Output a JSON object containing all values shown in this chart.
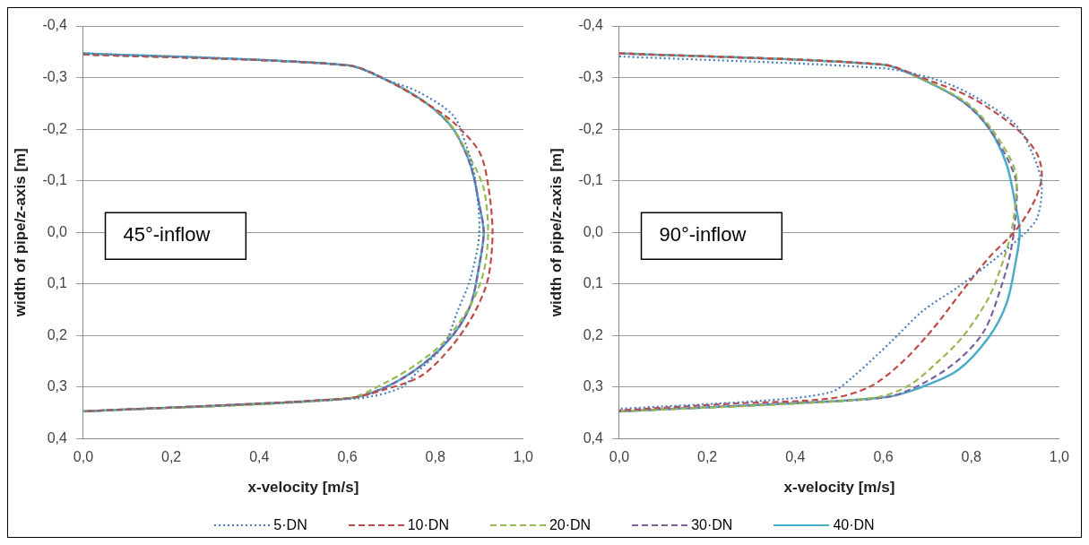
{
  "chart_data": [
    {
      "type": "line",
      "xlabel": "x-velocity [m/s]",
      "ylabel": "width of pipe/z-axis [m]",
      "annotations": [
        "45°-inflow"
      ],
      "xlim": [
        0,
        1
      ],
      "xticks": [
        {
          "value": 0,
          "label": "0,0"
        },
        {
          "value": 0.2,
          "label": "0,2"
        },
        {
          "value": 0.4,
          "label": "0,4"
        },
        {
          "value": 0.6,
          "label": "0,6"
        },
        {
          "value": 0.8,
          "label": "0,8"
        },
        {
          "value": 1,
          "label": "1,0"
        }
      ],
      "ylim": [
        0.4,
        -0.4
      ],
      "yticks": [
        {
          "value": -0.4,
          "label": "-0,4"
        },
        {
          "value": -0.3,
          "label": "-0,3"
        },
        {
          "value": -0.2,
          "label": "-0,2"
        },
        {
          "value": -0.1,
          "label": "-0,1"
        },
        {
          "value": 0,
          "label": "0,0"
        },
        {
          "value": 0.1,
          "label": "0,1"
        },
        {
          "value": 0.2,
          "label": "0,2"
        },
        {
          "value": 0.3,
          "label": "0,3"
        },
        {
          "value": 0.4,
          "label": "0,4"
        }
      ],
      "grid": "y",
      "legend": "bottom",
      "marker": "none",
      "series": [
        {
          "name": "5·DN",
          "color": "#4a7ebb",
          "line_style": "dotted",
          "x": [
            0,
            0.6,
            0.69,
            0.76,
            0.84,
            0.87,
            0.89,
            0.9,
            0.88,
            0.85,
            0.82,
            0.76,
            0.72,
            0.62,
            0
          ],
          "values": [
            -0.347,
            -0.324,
            -0.295,
            -0.273,
            -0.227,
            -0.169,
            -0.105,
            0,
            0.089,
            0.154,
            0.218,
            0.27,
            0.302,
            0.322,
            0.347
          ]
        },
        {
          "name": "10·DN",
          "color": "#be4b48",
          "line_style": "dashed",
          "x": [
            0,
            0.6,
            0.69,
            0.78,
            0.84,
            0.9,
            0.92,
            0.93,
            0.92,
            0.89,
            0.84,
            0.77,
            0.68,
            0.6,
            0
          ],
          "values": [
            -0.345,
            -0.324,
            -0.295,
            -0.25,
            -0.214,
            -0.156,
            -0.092,
            0,
            0.089,
            0.154,
            0.218,
            0.277,
            0.306,
            0.322,
            0.347
          ]
        },
        {
          "name": "20·DN",
          "color": "#98b954",
          "line_style": "dashed",
          "x": [
            0,
            0.6,
            0.69,
            0.78,
            0.83,
            0.88,
            0.91,
            0.92,
            0.91,
            0.88,
            0.82,
            0.76,
            0.69,
            0.6,
            0
          ],
          "values": [
            -0.345,
            -0.324,
            -0.295,
            -0.25,
            -0.214,
            -0.143,
            -0.085,
            0,
            0.076,
            0.141,
            0.212,
            0.254,
            0.29,
            0.322,
            0.347
          ]
        },
        {
          "name": "30·DN",
          "color": "#7d60a0",
          "line_style": "dashed",
          "x": [
            0,
            0.6,
            0.69,
            0.78,
            0.84,
            0.88,
            0.9,
            0.91,
            0.9,
            0.88,
            0.84,
            0.77,
            0.69,
            0.6,
            0
          ],
          "values": [
            -0.345,
            -0.324,
            -0.295,
            -0.25,
            -0.201,
            -0.13,
            -0.053,
            0,
            0.063,
            0.141,
            0.199,
            0.257,
            0.299,
            0.322,
            0.347
          ]
        },
        {
          "name": "40·DN",
          "color": "#4bacc6",
          "line_style": "solid",
          "x": [
            0,
            0.6,
            0.69,
            0.78,
            0.84,
            0.88,
            0.9,
            0.91,
            0.9,
            0.88,
            0.84,
            0.77,
            0.69,
            0.6,
            0
          ],
          "values": [
            -0.347,
            -0.324,
            -0.295,
            -0.25,
            -0.201,
            -0.13,
            -0.053,
            0,
            0.063,
            0.141,
            0.199,
            0.257,
            0.299,
            0.322,
            0.347
          ]
        }
      ]
    },
    {
      "type": "line",
      "xlabel": "x-velocity [m/s]",
      "ylabel": "width of pipe/z-axis [m]",
      "annotations": [
        "90°-inflow"
      ],
      "xlim": [
        0,
        1
      ],
      "xticks": [
        {
          "value": 0,
          "label": "0,0"
        },
        {
          "value": 0.2,
          "label": "0,2"
        },
        {
          "value": 0.4,
          "label": "0,4"
        },
        {
          "value": 0.6,
          "label": "0,6"
        },
        {
          "value": 0.8,
          "label": "0,8"
        },
        {
          "value": 1,
          "label": "1,0"
        }
      ],
      "ylim": [
        0.4,
        -0.4
      ],
      "yticks": [
        {
          "value": -0.4,
          "label": "-0,4"
        },
        {
          "value": -0.3,
          "label": "-0,3"
        },
        {
          "value": -0.2,
          "label": "-0,2"
        },
        {
          "value": -0.1,
          "label": "-0,1"
        },
        {
          "value": 0,
          "label": "0,0"
        },
        {
          "value": 0.1,
          "label": "0,1"
        },
        {
          "value": 0.2,
          "label": "0,2"
        },
        {
          "value": 0.3,
          "label": "0,3"
        },
        {
          "value": 0.4,
          "label": "0,4"
        }
      ],
      "grid": "y",
      "marker": "none",
      "series": [
        {
          "color": "#4a7ebb",
          "line_style": "dotted",
          "x": [
            0,
            0.6,
            0.72,
            0.8,
            0.9,
            0.94,
            0.96,
            0.95,
            0.92,
            0.84,
            0.77,
            0.69,
            0.62,
            0.53,
            0.48,
            0.33,
            0
          ],
          "values": [
            -0.341,
            -0.318,
            -0.296,
            -0.267,
            -0.209,
            -0.151,
            -0.093,
            -0.029,
            0.003,
            0.061,
            0.106,
            0.152,
            0.21,
            0.281,
            0.31,
            0.326,
            0.342
          ]
        },
        {
          "color": "#be4b48",
          "line_style": "dashed",
          "x": [
            0,
            0.6,
            0.69,
            0.8,
            0.9,
            0.95,
            0.96,
            0.94,
            0.9,
            0.84,
            0.78,
            0.71,
            0.64,
            0.57,
            0.48,
            0.26,
            0
          ],
          "values": [
            -0.347,
            -0.325,
            -0.299,
            -0.261,
            -0.203,
            -0.151,
            -0.106,
            -0.055,
            -0.003,
            0.049,
            0.113,
            0.19,
            0.254,
            0.299,
            0.322,
            0.332,
            0.345
          ]
        },
        {
          "color": "#98b954",
          "line_style": "dashed",
          "x": [
            0,
            0.6,
            0.69,
            0.79,
            0.85,
            0.9,
            0.9,
            0.89,
            0.87,
            0.84,
            0.78,
            0.72,
            0.66,
            0.59,
            0.4,
            0
          ],
          "values": [
            -0.347,
            -0.325,
            -0.296,
            -0.251,
            -0.196,
            -0.119,
            -0.055,
            0.003,
            0.061,
            0.126,
            0.203,
            0.254,
            0.296,
            0.319,
            0.332,
            0.347
          ]
        },
        {
          "color": "#7d60a0",
          "line_style": "dashed",
          "x": [
            0,
            0.6,
            0.69,
            0.78,
            0.84,
            0.9,
            0.9,
            0.89,
            0.87,
            0.83,
            0.77,
            0.69,
            0.61,
            0.4,
            0
          ],
          "values": [
            -0.347,
            -0.325,
            -0.296,
            -0.254,
            -0.202,
            -0.106,
            -0.029,
            0.035,
            0.1,
            0.19,
            0.248,
            0.293,
            0.319,
            0.331,
            0.347
          ]
        },
        {
          "color": "#4bacc6",
          "line_style": "solid",
          "x": [
            0,
            0.6,
            0.69,
            0.78,
            0.84,
            0.88,
            0.9,
            0.91,
            0.9,
            0.88,
            0.84,
            0.77,
            0.69,
            0.61,
            0.4,
            0
          ],
          "values": [
            -0.347,
            -0.325,
            -0.296,
            -0.254,
            -0.202,
            -0.132,
            -0.055,
            0,
            0.061,
            0.138,
            0.203,
            0.267,
            0.299,
            0.319,
            0.331,
            0.347
          ]
        }
      ]
    }
  ]
}
